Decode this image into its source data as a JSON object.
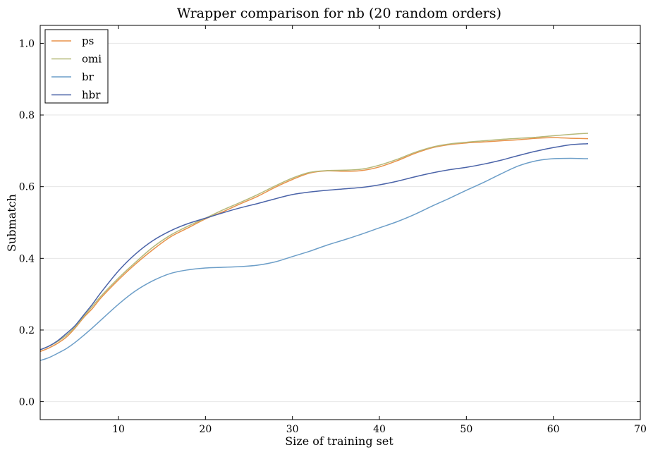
{
  "chart_data": {
    "type": "line",
    "title": "Wrapper comparison for nb (20 random orders)",
    "xlabel": "Size of training set",
    "ylabel": "Submatch",
    "xlim": [
      1,
      70
    ],
    "ylim": [
      -0.05,
      1.05
    ],
    "x_ticks": [
      10,
      20,
      30,
      40,
      50,
      60,
      70
    ],
    "x_tick_labels": [
      "10",
      "20",
      "30",
      "40",
      "50",
      "60",
      "70"
    ],
    "y_ticks": [
      0.0,
      0.2,
      0.4,
      0.6,
      0.8,
      1.0
    ],
    "y_tick_labels": [
      "0.0",
      "0.2",
      "0.4",
      "0.6",
      "0.8",
      "1.0"
    ],
    "grid": "horizontal",
    "legend_position": "top-left",
    "x": [
      1,
      2,
      3,
      4,
      5,
      6,
      7,
      8,
      10,
      12,
      14,
      16,
      18,
      20,
      22,
      24,
      26,
      28,
      30,
      32,
      34,
      36,
      38,
      40,
      42,
      44,
      46,
      48,
      50,
      52,
      54,
      56,
      58,
      60,
      62,
      64
    ],
    "series": [
      {
        "name": "ps",
        "color": "#e8924a",
        "values": [
          0.14,
          0.15,
          0.163,
          0.18,
          0.205,
          0.235,
          0.26,
          0.29,
          0.34,
          0.385,
          0.425,
          0.46,
          0.485,
          0.51,
          0.53,
          0.552,
          0.573,
          0.598,
          0.62,
          0.638,
          0.644,
          0.643,
          0.645,
          0.655,
          0.672,
          0.692,
          0.708,
          0.717,
          0.722,
          0.725,
          0.728,
          0.731,
          0.735,
          0.737,
          0.735,
          0.734
        ]
      },
      {
        "name": "omi",
        "color": "#b5b97a",
        "values": [
          0.145,
          0.155,
          0.168,
          0.185,
          0.208,
          0.238,
          0.266,
          0.295,
          0.345,
          0.39,
          0.432,
          0.465,
          0.49,
          0.512,
          0.535,
          0.556,
          0.578,
          0.602,
          0.624,
          0.64,
          0.645,
          0.646,
          0.649,
          0.66,
          0.676,
          0.695,
          0.71,
          0.719,
          0.724,
          0.728,
          0.732,
          0.735,
          0.738,
          0.742,
          0.746,
          0.749
        ]
      },
      {
        "name": "br",
        "color": "#6c9ec8",
        "values": [
          0.115,
          0.123,
          0.135,
          0.148,
          0.165,
          0.185,
          0.206,
          0.228,
          0.272,
          0.31,
          0.338,
          0.358,
          0.368,
          0.373,
          0.375,
          0.377,
          0.381,
          0.39,
          0.405,
          0.42,
          0.437,
          0.452,
          0.468,
          0.485,
          0.502,
          0.522,
          0.545,
          0.567,
          0.59,
          0.612,
          0.636,
          0.658,
          0.672,
          0.678,
          0.679,
          0.678
        ]
      },
      {
        "name": "hbr",
        "color": "#4a63a8",
        "values": [
          0.145,
          0.155,
          0.17,
          0.19,
          0.212,
          0.242,
          0.272,
          0.305,
          0.365,
          0.413,
          0.45,
          0.477,
          0.497,
          0.512,
          0.527,
          0.541,
          0.553,
          0.566,
          0.578,
          0.585,
          0.59,
          0.594,
          0.598,
          0.605,
          0.615,
          0.627,
          0.638,
          0.647,
          0.654,
          0.663,
          0.674,
          0.687,
          0.699,
          0.709,
          0.717,
          0.72
        ]
      }
    ]
  }
}
